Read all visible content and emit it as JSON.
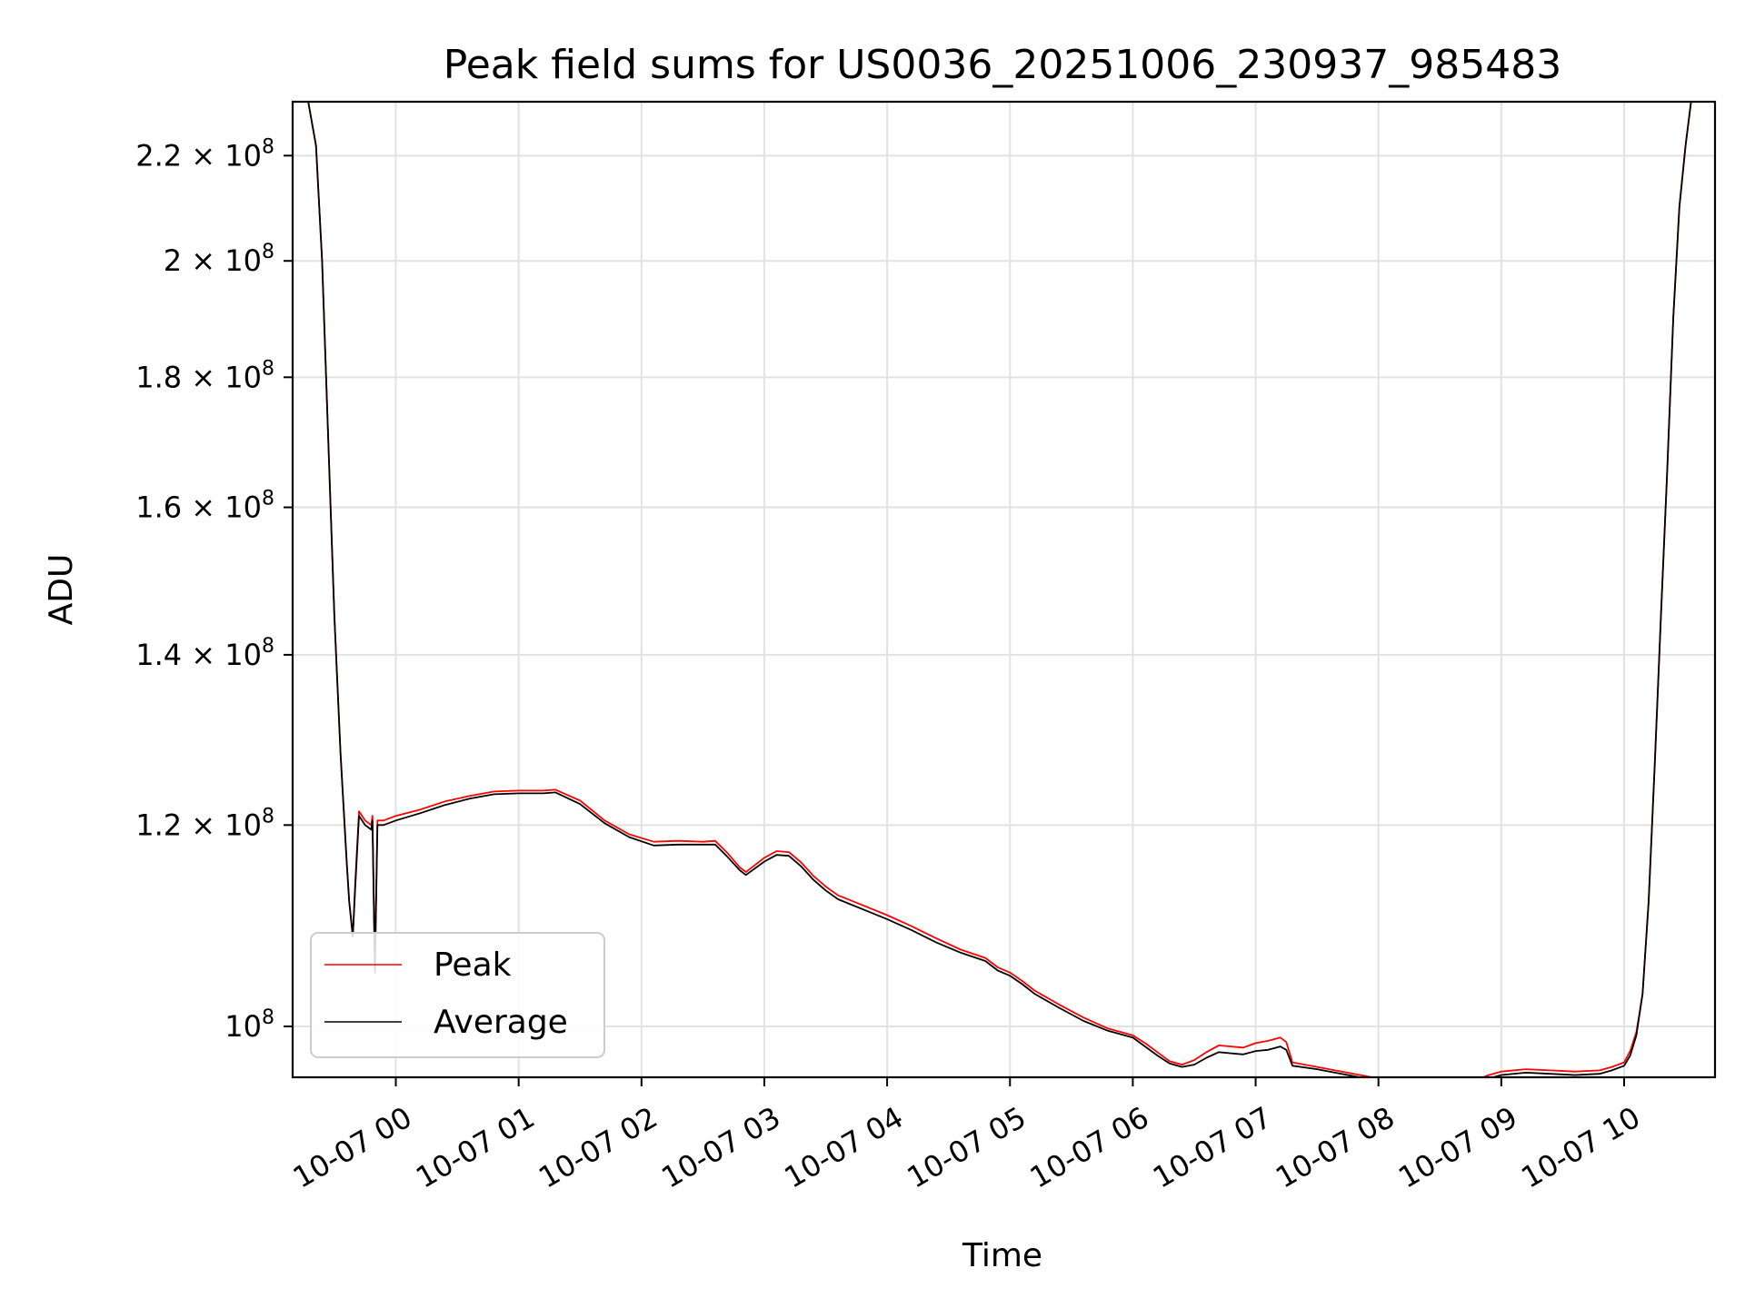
{
  "chart_data": {
    "type": "line",
    "title": "Peak field sums for US0036_20251006_230937_985483",
    "xlabel": "Time",
    "ylabel": "ADU",
    "x_unit": "hours since 2025-10-07 00:00",
    "xlim": [
      -0.84,
      10.74
    ],
    "ylim": [
      95500000,
      231000000
    ],
    "y_scale": "log",
    "grid": true,
    "legend_position": "lower-left",
    "x_ticks": [
      {
        "value": 0,
        "label": "10-07 00"
      },
      {
        "value": 1,
        "label": "10-07 01"
      },
      {
        "value": 2,
        "label": "10-07 02"
      },
      {
        "value": 3,
        "label": "10-07 03"
      },
      {
        "value": 4,
        "label": "10-07 04"
      },
      {
        "value": 5,
        "label": "10-07 05"
      },
      {
        "value": 6,
        "label": "10-07 06"
      },
      {
        "value": 7,
        "label": "10-07 07"
      },
      {
        "value": 8,
        "label": "10-07 08"
      },
      {
        "value": 9,
        "label": "10-07 09"
      },
      {
        "value": 10,
        "label": "10-07 10"
      }
    ],
    "y_ticks": [
      {
        "value": 100000000,
        "mantissa": "",
        "exp": "8"
      },
      {
        "value": 120000000,
        "mantissa": "1.2",
        "exp": "8"
      },
      {
        "value": 140000000,
        "mantissa": "1.4",
        "exp": "8"
      },
      {
        "value": 160000000,
        "mantissa": "1.6",
        "exp": "8"
      },
      {
        "value": 180000000,
        "mantissa": "1.8",
        "exp": "8"
      },
      {
        "value": 200000000,
        "mantissa": "2",
        "exp": "8"
      },
      {
        "value": 220000000,
        "mantissa": "2.2",
        "exp": "8"
      }
    ],
    "series": [
      {
        "name": "Peak",
        "color": "#ff0000",
        "x": [
          -0.72,
          -0.65,
          -0.6,
          -0.55,
          -0.5,
          -0.45,
          -0.4,
          -0.38,
          -0.35,
          -0.33,
          -0.3,
          -0.25,
          -0.2,
          -0.19,
          -0.17,
          -0.15,
          -0.1,
          0.0,
          0.2,
          0.4,
          0.6,
          0.8,
          1.0,
          1.2,
          1.3,
          1.5,
          1.7,
          1.9,
          2.1,
          2.3,
          2.5,
          2.6,
          2.7,
          2.8,
          2.85,
          3.0,
          3.1,
          3.2,
          3.3,
          3.4,
          3.5,
          3.6,
          3.7,
          3.8,
          4.0,
          4.2,
          4.4,
          4.6,
          4.8,
          4.9,
          5.0,
          5.1,
          5.2,
          5.4,
          5.6,
          5.8,
          6.0,
          6.1,
          6.2,
          6.3,
          6.4,
          6.5,
          6.6,
          6.7,
          6.8,
          6.9,
          7.0,
          7.1,
          7.2,
          7.25,
          7.3,
          7.5,
          7.7,
          7.9,
          8.0,
          8.2,
          8.4,
          8.6,
          8.8,
          8.9,
          9.0,
          9.2,
          9.4,
          9.6,
          9.8,
          9.9,
          10.0,
          10.05,
          10.1,
          10.15,
          10.2,
          10.25,
          10.3,
          10.35,
          10.4,
          10.45,
          10.5,
          10.55
        ],
        "values": [
          232000000,
          222000000,
          200000000,
          170000000,
          145000000,
          128000000,
          116000000,
          112000000,
          108500000,
          114000000,
          121500000,
          120500000,
          120000000,
          121000000,
          105500000,
          120500000,
          120500000,
          121000000,
          121700000,
          122600000,
          123200000,
          123700000,
          123800000,
          123800000,
          123900000,
          122700000,
          120500000,
          119000000,
          118200000,
          118300000,
          118200000,
          118300000,
          117000000,
          115500000,
          115000000,
          116500000,
          117200000,
          117100000,
          116000000,
          114600000,
          113500000,
          112600000,
          112100000,
          111600000,
          110600000,
          109500000,
          108300000,
          107200000,
          106400000,
          105500000,
          105000000,
          104200000,
          103300000,
          102000000,
          100800000,
          99800000,
          99200000,
          98500000,
          97700000,
          96900000,
          96600000,
          97000000,
          97700000,
          98300000,
          98200000,
          98100000,
          98500000,
          98700000,
          99000000,
          98600000,
          96800000,
          96400000,
          96000000,
          95600000,
          95400000,
          95200000,
          95200000,
          95100000,
          95300000,
          95700000,
          96000000,
          96200000,
          96100000,
          96000000,
          96100000,
          96400000,
          96800000,
          97800000,
          99500000,
          103000000,
          112000000,
          127000000,
          145000000,
          165000000,
          190000000,
          210000000,
          222000000,
          232000000
        ]
      },
      {
        "name": "Average",
        "color": "#000000",
        "x": [
          -0.72,
          -0.65,
          -0.6,
          -0.55,
          -0.5,
          -0.45,
          -0.4,
          -0.38,
          -0.35,
          -0.33,
          -0.3,
          -0.25,
          -0.2,
          -0.19,
          -0.17,
          -0.15,
          -0.1,
          0.0,
          0.2,
          0.4,
          0.6,
          0.8,
          1.0,
          1.2,
          1.3,
          1.5,
          1.7,
          1.9,
          2.1,
          2.3,
          2.5,
          2.6,
          2.7,
          2.8,
          2.85,
          3.0,
          3.1,
          3.2,
          3.3,
          3.4,
          3.5,
          3.6,
          3.7,
          3.8,
          4.0,
          4.2,
          4.4,
          4.6,
          4.8,
          4.9,
          5.0,
          5.1,
          5.2,
          5.4,
          5.6,
          5.8,
          6.0,
          6.1,
          6.2,
          6.3,
          6.4,
          6.5,
          6.6,
          6.7,
          6.8,
          6.9,
          7.0,
          7.1,
          7.2,
          7.25,
          7.3,
          7.5,
          7.7,
          7.9,
          8.0,
          8.2,
          8.4,
          8.6,
          8.8,
          8.9,
          9.0,
          9.2,
          9.4,
          9.6,
          9.8,
          9.9,
          10.0,
          10.05,
          10.1,
          10.15,
          10.2,
          10.25,
          10.3,
          10.35,
          10.4,
          10.45,
          10.5,
          10.55
        ],
        "values": [
          232000000,
          222000000,
          200000000,
          170000000,
          145000000,
          128000000,
          116000000,
          112000000,
          108500000,
          113500000,
          121000000,
          120000000,
          119500000,
          120500000,
          105000000,
          120000000,
          120000000,
          120500000,
          121300000,
          122200000,
          122900000,
          123400000,
          123500000,
          123500000,
          123600000,
          122300000,
          120200000,
          118700000,
          117800000,
          117900000,
          117900000,
          117900000,
          116600000,
          115200000,
          114700000,
          116100000,
          116800000,
          116700000,
          115600000,
          114200000,
          113100000,
          112200000,
          111700000,
          111200000,
          110200000,
          109100000,
          107900000,
          106900000,
          106100000,
          105200000,
          104700000,
          103900000,
          103000000,
          101700000,
          100500000,
          99600000,
          99000000,
          98200000,
          97400000,
          96700000,
          96400000,
          96600000,
          97200000,
          97700000,
          97600000,
          97500000,
          97800000,
          97900000,
          98200000,
          97900000,
          96500000,
          96200000,
          95800000,
          95400000,
          95200000,
          95000000,
          95000000,
          94900000,
          95100000,
          95400000,
          95700000,
          95900000,
          95800000,
          95700000,
          95800000,
          96100000,
          96500000,
          97400000,
          99200000,
          103000000,
          112000000,
          127000000,
          145000000,
          165000000,
          190000000,
          210000000,
          222000000,
          232000000
        ]
      }
    ]
  }
}
